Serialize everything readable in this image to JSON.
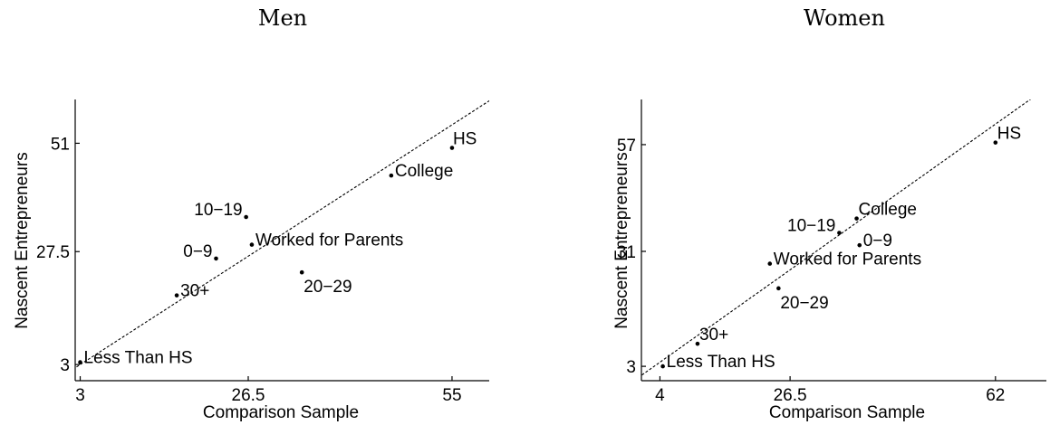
{
  "chart_data": [
    {
      "type": "scatter",
      "title": "Men",
      "xlabel": "Comparison Sample",
      "ylabel": "Nascent Entrepreneurs",
      "xlim": [
        2.3,
        60.2
      ],
      "ylim": [
        -0.5,
        60.5
      ],
      "xticks": [
        3,
        26.5,
        55
      ],
      "xtick_labels": [
        "3",
        "26.5",
        "55"
      ],
      "yticks": [
        3,
        27.5,
        51
      ],
      "ytick_labels": [
        "3",
        "27.5",
        "51"
      ],
      "reference_line": "y = x (dashed)",
      "points": [
        {
          "label": "HS",
          "x": 55.0,
          "y": 50.0,
          "label_pos": "above-left"
        },
        {
          "label": "College",
          "x": 46.5,
          "y": 44.0,
          "label_pos": "right"
        },
        {
          "label": "10−19",
          "x": 26.2,
          "y": 35.0,
          "label_pos": "left"
        },
        {
          "label": "Worked for Parents",
          "x": 27.0,
          "y": 29.0,
          "label_pos": "right"
        },
        {
          "label": "0−9",
          "x": 22.0,
          "y": 26.0,
          "label_pos": "left"
        },
        {
          "label": "20−29",
          "x": 34.0,
          "y": 23.0,
          "label_pos": "below-right"
        },
        {
          "label": "30+",
          "x": 16.5,
          "y": 18.0,
          "label_pos": "right"
        },
        {
          "label": "Less Than HS",
          "x": 3.0,
          "y": 3.5,
          "label_pos": "right"
        }
      ]
    },
    {
      "type": "scatter",
      "title": "Women",
      "xlabel": "Comparison Sample",
      "ylabel": "Nascent Entrepreneurs",
      "xlim": [
        0.8,
        70.8
      ],
      "ylim": [
        -0.5,
        68.0
      ],
      "xticks": [
        4,
        26.5,
        62
      ],
      "xtick_labels": [
        "4",
        "26.5",
        "62"
      ],
      "yticks": [
        3,
        31,
        57
      ],
      "ytick_labels": [
        "3",
        "31",
        "57"
      ],
      "reference_line": "y = x (dashed)",
      "points": [
        {
          "label": "HS",
          "x": 62.0,
          "y": 57.5,
          "label_pos": "above-right"
        },
        {
          "label": "College",
          "x": 38.0,
          "y": 39.0,
          "label_pos": "above-right"
        },
        {
          "label": "10−19",
          "x": 35.0,
          "y": 35.5,
          "label_pos": "left"
        },
        {
          "label": "0−9",
          "x": 38.5,
          "y": 32.5,
          "label_pos": "right"
        },
        {
          "label": "Worked for Parents",
          "x": 23.0,
          "y": 28.0,
          "label_pos": "right"
        },
        {
          "label": "20−29",
          "x": 24.5,
          "y": 22.0,
          "label_pos": "below-right"
        },
        {
          "label": "30+",
          "x": 10.5,
          "y": 8.5,
          "label_pos": "above-right"
        },
        {
          "label": "Less Than HS",
          "x": 4.5,
          "y": 3.0,
          "label_pos": "right"
        }
      ]
    }
  ]
}
